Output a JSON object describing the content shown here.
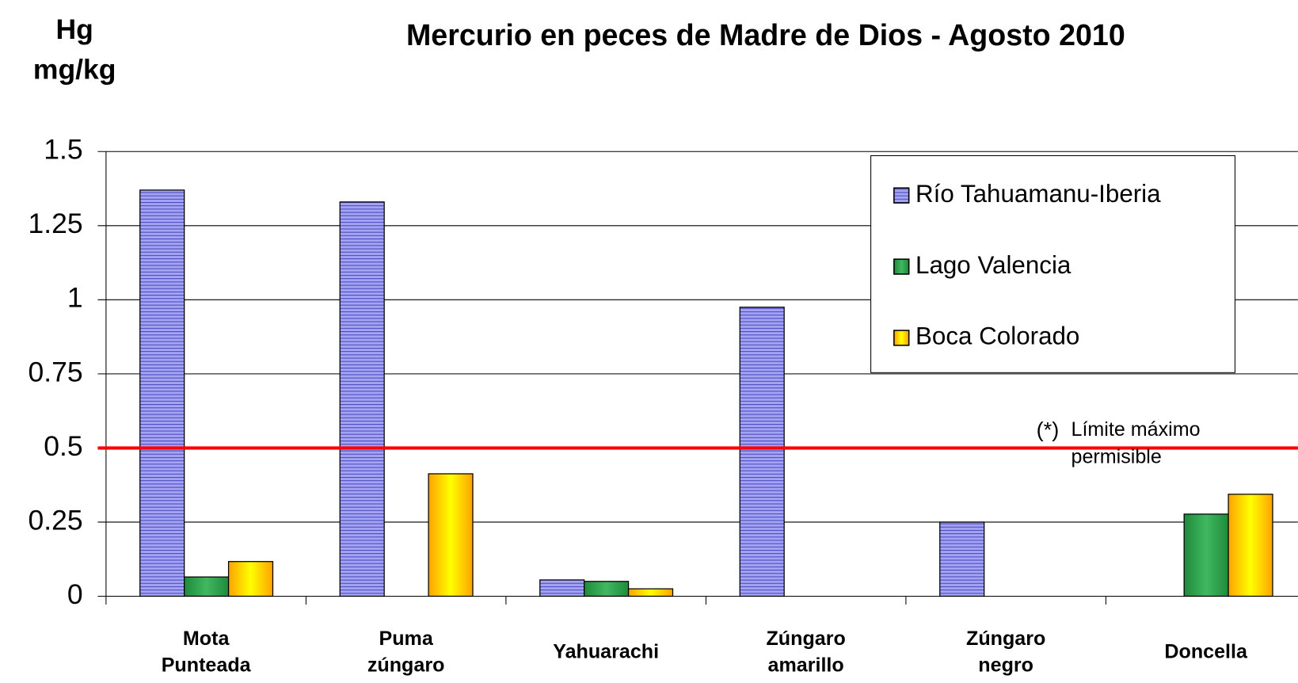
{
  "chart_data": {
    "type": "bar",
    "title": "Mercurio en peces de Madre de Dios - Agosto 2010",
    "y_label": [
      "Hg",
      "mg/kg"
    ],
    "categories": [
      [
        "Mota",
        "Punteada"
      ],
      [
        "Puma",
        "zúngaro"
      ],
      [
        "Yahuarachi"
      ],
      [
        "Zúngaro",
        "amarillo"
      ],
      [
        "Zúngaro",
        "negro"
      ],
      [
        "Doncella"
      ]
    ],
    "series": [
      {
        "name": "Río Tahuamanu-Iberia",
        "color": "#9a9aee",
        "values": [
          1.37,
          1.33,
          0.055,
          0.975,
          0.25,
          null
        ]
      },
      {
        "name": "Lago Valencia",
        "color": "#33a853",
        "values": [
          0.065,
          null,
          0.05,
          null,
          null,
          0.277
        ]
      },
      {
        "name": "Boca Colorado",
        "color": "#ffee00",
        "values": [
          0.117,
          0.413,
          0.025,
          null,
          null,
          0.344
        ]
      }
    ],
    "ylim": [
      0,
      1.5
    ],
    "yticks": [
      0,
      0.25,
      0.5,
      {
        "value": 0.75,
        "label": "0.75"
      },
      1,
      1.25,
      1.5
    ],
    "grid": true,
    "legend": "top-right",
    "limit": {
      "value": 0.5,
      "color": "#ff0000",
      "marker": "(*)",
      "label": [
        "Límite máximo",
        "permisible"
      ]
    }
  }
}
